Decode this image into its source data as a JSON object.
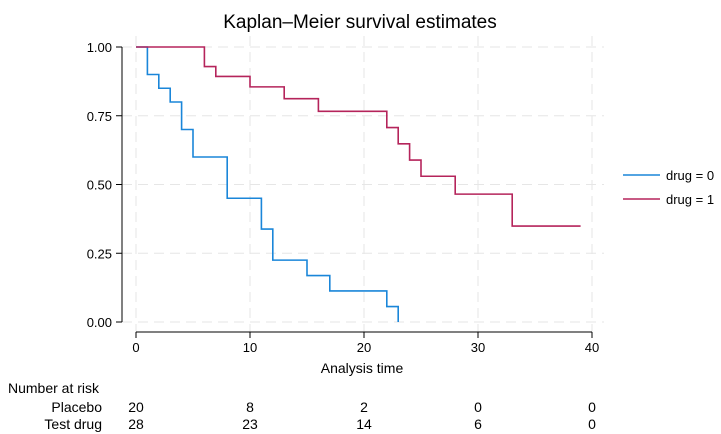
{
  "chart_data": {
    "type": "line",
    "step": true,
    "title": "Kaplan–Meier survival estimates",
    "xlabel": "Analysis time",
    "ylabel": "",
    "xlim": [
      0,
      40
    ],
    "ylim": [
      0,
      1
    ],
    "x_ticks": [
      0,
      10,
      20,
      30,
      40
    ],
    "y_ticks": [
      0,
      0.25,
      0.5,
      0.75,
      1.0
    ],
    "x_tick_labels": [
      "0",
      "10",
      "20",
      "30",
      "40"
    ],
    "y_tick_labels": [
      "0.00",
      "0.25",
      "0.50",
      "0.75",
      "1.00"
    ],
    "grid": true,
    "legend_position": "right",
    "series": [
      {
        "name": "drug = 0",
        "color": "#1a86d9",
        "x": [
          0,
          1,
          2,
          3,
          4,
          5,
          8,
          11,
          12,
          15,
          17,
          22,
          23
        ],
        "y": [
          1.0,
          0.9,
          0.85,
          0.8,
          0.7,
          0.6,
          0.45,
          0.338,
          0.225,
          0.169,
          0.113,
          0.056,
          0.0
        ]
      },
      {
        "name": "drug = 1",
        "color": "#b5245b",
        "x": [
          0,
          6,
          7,
          10,
          13,
          16,
          22,
          23,
          24,
          25,
          28,
          33,
          39
        ],
        "y": [
          1.0,
          0.929,
          0.893,
          0.855,
          0.812,
          0.766,
          0.707,
          0.648,
          0.589,
          0.53,
          0.465,
          0.349,
          0.349
        ]
      }
    ],
    "risk_table": {
      "title": "Number at risk",
      "rows": [
        {
          "label": "Placebo",
          "values": [
            "20",
            "8",
            "2",
            "0",
            "0"
          ]
        },
        {
          "label": "Test drug",
          "values": [
            "28",
            "23",
            "14",
            "6",
            "0"
          ]
        }
      ]
    }
  }
}
